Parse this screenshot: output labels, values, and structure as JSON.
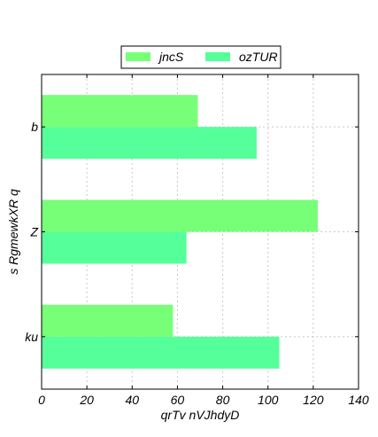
{
  "chart_data": {
    "type": "bar",
    "orientation": "horizontal",
    "title": "",
    "xlabel": "qrTv nVJhdyD",
    "ylabel": "s RgmewkXR q",
    "categories": [
      "ku",
      "Z",
      "b"
    ],
    "series": [
      {
        "name": "jncS",
        "color": "#77ff77",
        "values": [
          58,
          122,
          69
        ]
      },
      {
        "name": "ozTUR",
        "color": "#55ff99",
        "values": [
          105,
          64,
          95
        ]
      }
    ],
    "xlim": [
      0,
      140
    ],
    "xticks": [
      0,
      20,
      40,
      60,
      80,
      100,
      120,
      140
    ],
    "grid": true,
    "legend_position": "top-center"
  }
}
